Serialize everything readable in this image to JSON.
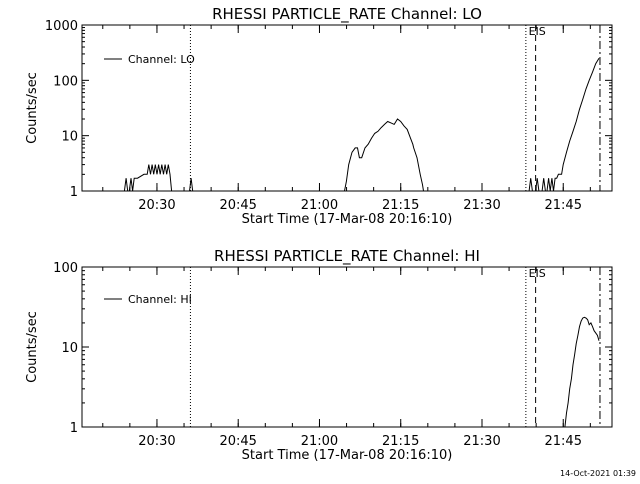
{
  "footer": {
    "timestamp": "14-Oct-2021 01:39"
  },
  "chart_data": [
    {
      "type": "line",
      "title": "RHESSI PARTICLE_RATE Channel: LO",
      "xlabel": "Start Time (17-Mar-08 20:16:10)",
      "ylabel": "Counts/sec",
      "yscale": "log",
      "ylim": [
        1,
        1000
      ],
      "yticks": [
        1,
        10,
        100,
        1000
      ],
      "ytick_labels": [
        "1",
        "10",
        "100",
        "1000"
      ],
      "xlim": [
        20.2694,
        21.9
      ],
      "xticks": [
        20.5,
        20.75,
        21.0,
        21.25,
        21.5,
        21.75
      ],
      "xtick_labels": [
        "20:30",
        "20:45",
        "21:00",
        "21:15",
        "21:30",
        "21:45"
      ],
      "legend": {
        "entries": [
          "Channel: LO"
        ],
        "placement": "top-left"
      },
      "grid": false,
      "series": [
        {
          "name": "Channel: LO",
          "x": [
            20.4,
            20.405,
            20.41,
            20.415,
            20.42,
            20.425,
            20.43,
            20.44,
            20.46,
            20.47,
            20.475,
            20.48,
            20.485,
            20.49,
            20.495,
            20.5,
            20.505,
            20.51,
            20.515,
            20.52,
            20.525,
            20.53,
            20.535,
            20.54,
            20.545,
            20.55,
            20.555,
            20.56,
            20.6,
            20.605,
            20.61
          ],
          "y": [
            1,
            1.7,
            1,
            1,
            1.7,
            1,
            1.7,
            1.7,
            2,
            2,
            3,
            2,
            3,
            2,
            3,
            2,
            3,
            2,
            3,
            2,
            3,
            2,
            3,
            2,
            1,
            1,
            1,
            1,
            1,
            1.7,
            1
          ]
        },
        {
          "name": "Channel: LO",
          "x": [
            21.077,
            21.083,
            21.09,
            21.1,
            21.11,
            21.117,
            21.123,
            21.13,
            21.14,
            21.15,
            21.16,
            21.17,
            21.18,
            21.19,
            21.2,
            21.21,
            21.22,
            21.23,
            21.24,
            21.25,
            21.26,
            21.27,
            21.28,
            21.287,
            21.29,
            21.3,
            21.31,
            21.317,
            21.32
          ],
          "y": [
            1,
            1.5,
            3,
            5,
            6,
            6,
            4,
            4,
            6,
            7,
            9,
            11,
            12,
            14,
            16,
            18,
            17,
            16,
            20,
            18,
            15,
            13,
            9,
            7,
            6,
            4,
            2,
            1.3,
            1
          ]
        },
        {
          "name": "Channel: LO",
          "x": [
            21.645,
            21.65,
            21.655,
            21.66,
            21.665,
            21.67,
            21.675,
            21.685,
            21.69,
            21.695,
            21.7,
            21.705,
            21.71,
            21.715,
            21.72,
            21.725,
            21.73,
            21.735,
            21.74,
            21.745,
            21.75,
            21.76,
            21.77,
            21.78,
            21.79,
            21.8,
            21.81,
            21.82,
            21.83,
            21.84,
            21.85,
            21.86
          ],
          "y": [
            1,
            1.7,
            1,
            1,
            1,
            1.7,
            1,
            1,
            1.7,
            1,
            1,
            1.7,
            1,
            1.7,
            1,
            1.7,
            1.7,
            2,
            2,
            2,
            3,
            5,
            8,
            12,
            18,
            30,
            45,
            70,
            100,
            140,
            200,
            250
          ]
        }
      ],
      "vertical_markers": [
        {
          "x": 20.603,
          "style": "dotted",
          "label": ""
        },
        {
          "x": 21.635,
          "style": "dotted",
          "label": ""
        },
        {
          "x": 21.665,
          "style": "dashed",
          "label": "EIS"
        },
        {
          "x": 21.863,
          "style": "dash-dot",
          "label": ""
        }
      ]
    },
    {
      "type": "line",
      "title": "RHESSI PARTICLE_RATE Channel: HI",
      "xlabel": "Start Time (17-Mar-08 20:16:10)",
      "ylabel": "Counts/sec",
      "yscale": "log",
      "ylim": [
        1,
        100
      ],
      "yticks": [
        1,
        10,
        100
      ],
      "ytick_labels": [
        "1",
        "10",
        "100"
      ],
      "xlim": [
        20.2694,
        21.9
      ],
      "xticks": [
        20.5,
        20.75,
        21.0,
        21.25,
        21.5,
        21.75
      ],
      "xtick_labels": [
        "20:30",
        "20:45",
        "21:00",
        "21:15",
        "21:30",
        "21:45"
      ],
      "legend": {
        "entries": [
          "Channel: HI"
        ],
        "placement": "top-left"
      },
      "grid": false,
      "series": [
        {
          "name": "Channel: HI",
          "x": [
            21.755,
            21.76,
            21.765,
            21.77,
            21.775,
            21.78,
            21.785,
            21.79,
            21.795,
            21.8,
            21.805,
            21.81,
            21.815,
            21.82,
            21.825,
            21.83,
            21.835,
            21.84,
            21.845,
            21.85,
            21.855,
            21.86
          ],
          "y": [
            1,
            1.5,
            2,
            3,
            4,
            6,
            8,
            11,
            14,
            18,
            21,
            23,
            23.5,
            23,
            22,
            19,
            20,
            18,
            16,
            15,
            14,
            12
          ]
        }
      ],
      "vertical_markers": [
        {
          "x": 20.603,
          "style": "dotted",
          "label": ""
        },
        {
          "x": 21.635,
          "style": "dotted",
          "label": ""
        },
        {
          "x": 21.665,
          "style": "dashed",
          "label": "EIS"
        },
        {
          "x": 21.863,
          "style": "dash-dot",
          "label": ""
        }
      ]
    }
  ]
}
